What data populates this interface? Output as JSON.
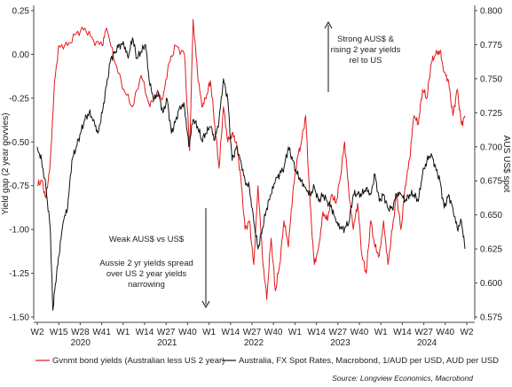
{
  "chart_data": {
    "type": "line",
    "ylabel_left": "Yield gap (2 year govvies)",
    "ylabel_right": "AUS US$ spot",
    "left_ticks": [
      "0.25",
      "0.00",
      "-0.25",
      "-0.50",
      "-0.75",
      "-1.00",
      "-1.25",
      "-1.50"
    ],
    "right_ticks": [
      "0.800",
      "0.775",
      "0.750",
      "0.725",
      "0.700",
      "0.675",
      "0.650",
      "0.625",
      "0.600",
      "0.575"
    ],
    "ylim_left": [
      -1.5,
      0.25
    ],
    "ylim_right": [
      0.575,
      0.8
    ],
    "x_ticks": [
      "W2",
      "W15",
      "W28",
      "W41",
      "W1",
      "W14",
      "W27",
      "W40",
      "W1",
      "W14",
      "W27",
      "W40",
      "W1",
      "W14",
      "W27",
      "W40",
      "W1",
      "W14",
      "W27",
      "W40",
      "W2"
    ],
    "years": [
      "2020",
      "2021",
      "2022",
      "2023",
      "2024"
    ],
    "x_range": [
      2020.0,
      2024.96
    ],
    "grid": false,
    "legend_position": "bottom",
    "series": [
      {
        "name": "Gvnmt bond yields (Australian less US 2 year)",
        "axis": "left",
        "color": "#e31a1c",
        "x": [
          2020.0,
          2020.05,
          2020.1,
          2020.15,
          2020.2,
          2020.25,
          2020.35,
          2020.45,
          2020.55,
          2020.65,
          2020.75,
          2020.8,
          2020.9,
          2021.0,
          2021.1,
          2021.2,
          2021.3,
          2021.38,
          2021.45,
          2021.52,
          2021.6,
          2021.7,
          2021.76,
          2021.8,
          2021.85,
          2021.9,
          2021.95,
          2022.0,
          2022.05,
          2022.1,
          2022.15,
          2022.2,
          2022.25,
          2022.3,
          2022.35,
          2022.4,
          2022.45,
          2022.5,
          2022.55,
          2022.6,
          2022.65,
          2022.7,
          2022.75,
          2022.8,
          2022.85,
          2022.9,
          2022.95,
          2023.0,
          2023.05,
          2023.1,
          2023.15,
          2023.2,
          2023.25,
          2023.3,
          2023.35,
          2023.4,
          2023.45,
          2023.5,
          2023.55,
          2023.6,
          2023.65,
          2023.7,
          2023.75,
          2023.8,
          2023.85,
          2023.9,
          2023.95,
          2024.0,
          2024.05,
          2024.1,
          2024.15,
          2024.2,
          2024.25,
          2024.3,
          2024.35,
          2024.4,
          2024.45,
          2024.5,
          2024.55,
          2024.6,
          2024.65,
          2024.7,
          2024.75,
          2024.8,
          2024.85,
          2024.9,
          2024.94
        ],
        "values": [
          -0.75,
          -0.72,
          -0.82,
          -0.62,
          -0.15,
          0.05,
          0.05,
          0.12,
          0.15,
          0.08,
          0.05,
          0.15,
          -0.05,
          -0.2,
          -0.3,
          -0.12,
          -0.3,
          -0.22,
          -0.25,
          -0.05,
          0.05,
          0.0,
          -0.55,
          0.2,
          -0.1,
          -0.3,
          -0.25,
          -0.15,
          -0.4,
          -0.65,
          -0.3,
          -0.5,
          -0.45,
          -0.5,
          -0.7,
          -1.0,
          -0.95,
          -1.2,
          -0.75,
          -1.15,
          -1.4,
          -1.05,
          -1.35,
          -1.2,
          -0.95,
          -1.1,
          -0.8,
          -0.6,
          -0.5,
          -0.35,
          -0.85,
          -1.2,
          -1.1,
          -0.9,
          -0.95,
          -0.8,
          -0.85,
          -0.7,
          -0.5,
          -0.8,
          -1.0,
          -0.85,
          -1.15,
          -1.25,
          -0.95,
          -1.1,
          -1.15,
          -0.95,
          -1.2,
          -1.0,
          -0.8,
          -1.0,
          -0.75,
          -0.6,
          -0.35,
          -0.4,
          -0.2,
          -0.25,
          -0.05,
          0.0,
          0.02,
          -0.1,
          -0.15,
          -0.35,
          -0.2,
          -0.4,
          -0.35
        ]
      },
      {
        "name": "Australia, FX Spot Rates, Macrobond, 1/AUD per USD, AUD per USD",
        "axis": "right",
        "color": "#111111",
        "x": [
          2020.0,
          2020.05,
          2020.1,
          2020.15,
          2020.18,
          2020.21,
          2020.25,
          2020.3,
          2020.35,
          2020.4,
          2020.45,
          2020.5,
          2020.55,
          2020.6,
          2020.65,
          2020.7,
          2020.75,
          2020.8,
          2020.85,
          2020.9,
          2020.95,
          2021.0,
          2021.05,
          2021.1,
          2021.15,
          2021.2,
          2021.25,
          2021.3,
          2021.35,
          2021.4,
          2021.45,
          2021.5,
          2021.55,
          2021.6,
          2021.65,
          2021.7,
          2021.75,
          2021.8,
          2021.85,
          2021.9,
          2021.95,
          2022.0,
          2022.05,
          2022.1,
          2022.15,
          2022.2,
          2022.25,
          2022.3,
          2022.35,
          2022.4,
          2022.45,
          2022.5,
          2022.55,
          2022.6,
          2022.65,
          2022.7,
          2022.75,
          2022.8,
          2022.85,
          2022.9,
          2022.95,
          2023.0,
          2023.05,
          2023.1,
          2023.15,
          2023.2,
          2023.25,
          2023.3,
          2023.35,
          2023.4,
          2023.45,
          2023.5,
          2023.55,
          2023.6,
          2023.65,
          2023.7,
          2023.75,
          2023.8,
          2023.85,
          2023.9,
          2023.95,
          2024.0,
          2024.05,
          2024.1,
          2024.15,
          2024.2,
          2024.25,
          2024.3,
          2024.35,
          2024.4,
          2024.45,
          2024.5,
          2024.55,
          2024.6,
          2024.65,
          2024.7,
          2024.75,
          2024.8,
          2024.85,
          2024.9,
          2024.94
        ],
        "values": [
          0.7,
          0.69,
          0.67,
          0.64,
          0.58,
          0.6,
          0.62,
          0.645,
          0.655,
          0.69,
          0.7,
          0.71,
          0.72,
          0.725,
          0.72,
          0.71,
          0.725,
          0.745,
          0.765,
          0.77,
          0.775,
          0.775,
          0.765,
          0.78,
          0.765,
          0.77,
          0.775,
          0.745,
          0.735,
          0.74,
          0.725,
          0.735,
          0.71,
          0.72,
          0.73,
          0.73,
          0.7,
          0.72,
          0.715,
          0.705,
          0.71,
          0.715,
          0.705,
          0.72,
          0.75,
          0.735,
          0.69,
          0.7,
          0.69,
          0.675,
          0.67,
          0.645,
          0.625,
          0.64,
          0.655,
          0.665,
          0.675,
          0.68,
          0.685,
          0.7,
          0.69,
          0.68,
          0.675,
          0.67,
          0.665,
          0.67,
          0.66,
          0.665,
          0.66,
          0.655,
          0.645,
          0.64,
          0.64,
          0.645,
          0.665,
          0.665,
          0.665,
          0.67,
          0.665,
          0.68,
          0.66,
          0.665,
          0.655,
          0.655,
          0.665,
          0.665,
          0.66,
          0.665,
          0.665,
          0.66,
          0.68,
          0.69,
          0.695,
          0.685,
          0.675,
          0.655,
          0.665,
          0.655,
          0.64,
          0.645,
          0.625
        ]
      }
    ],
    "annotations": {
      "top": [
        "Strong AUS$ &",
        "rising 2 year yields",
        "rel to US"
      ],
      "bottom_first": "Weak AUS$ vs US$",
      "bottom_second": [
        "Aussie 2 yr yields spread",
        "over US 2 year yields",
        "narrowing"
      ]
    },
    "source": "Source:  Longview Economics,  Macrobond"
  }
}
